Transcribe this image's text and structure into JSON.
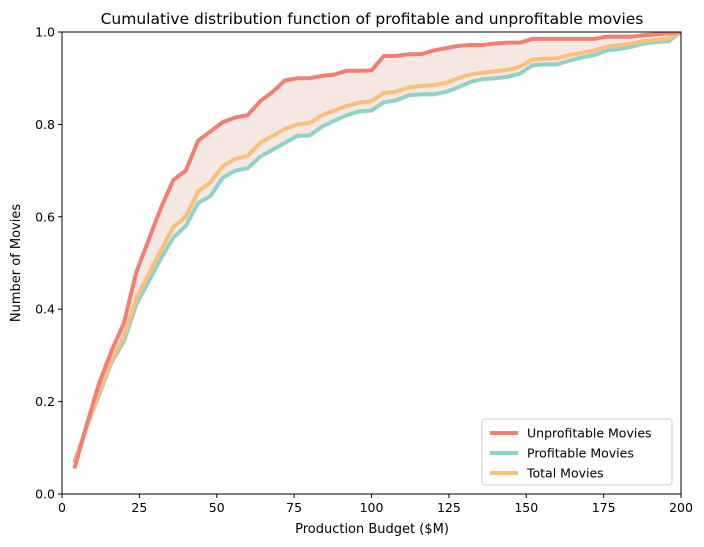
{
  "chart_data": {
    "type": "line",
    "title": "Cumulative distribution function of profitable and unprofitable movies",
    "xlabel": "Production Budget ($M)",
    "ylabel": "Number of Movies",
    "xlim": [
      0,
      200
    ],
    "ylim": [
      0,
      1
    ],
    "xticks": [
      0,
      25,
      50,
      75,
      100,
      125,
      150,
      175,
      200
    ],
    "yticks": [
      0.0,
      0.2,
      0.4,
      0.6,
      0.8,
      1.0
    ],
    "xtick_labels": [
      "0",
      "25",
      "50",
      "75",
      "100",
      "125",
      "150",
      "175",
      "200"
    ],
    "ytick_labels": [
      "0.0",
      "0.2",
      "0.4",
      "0.6",
      "0.8",
      "1.0"
    ],
    "grid": false,
    "legend_position": "lower-right",
    "fill_between": {
      "upper": "Unprofitable Movies",
      "lower": "Profitable Movies",
      "color": "#f4e4df"
    },
    "x": [
      4,
      8,
      12,
      16,
      20,
      24,
      28,
      32,
      36,
      40,
      44,
      48,
      52,
      56,
      60,
      64,
      68,
      72,
      76,
      80,
      84,
      88,
      92,
      96,
      100,
      104,
      108,
      112,
      116,
      120,
      124,
      128,
      132,
      136,
      140,
      144,
      148,
      152,
      156,
      160,
      164,
      168,
      172,
      176,
      180,
      184,
      188,
      192,
      196,
      200
    ],
    "series": [
      {
        "name": "Unprofitable Movies",
        "color": "#f28072",
        "values": [
          0.055,
          0.15,
          0.24,
          0.31,
          0.37,
          0.48,
          0.55,
          0.62,
          0.68,
          0.7,
          0.765,
          0.785,
          0.805,
          0.815,
          0.82,
          0.85,
          0.87,
          0.895,
          0.9,
          0.9,
          0.905,
          0.908,
          0.916,
          0.916,
          0.917,
          0.948,
          0.948,
          0.952,
          0.952,
          0.96,
          0.965,
          0.97,
          0.972,
          0.972,
          0.975,
          0.977,
          0.977,
          0.985,
          0.985,
          0.985,
          0.985,
          0.985,
          0.985,
          0.99,
          0.99,
          0.99,
          0.993,
          0.995,
          0.997,
          1.0
        ]
      },
      {
        "name": "Profitable Movies",
        "color": "#8ed3c8",
        "values": [
          0.07,
          0.145,
          0.215,
          0.285,
          0.33,
          0.41,
          0.46,
          0.51,
          0.555,
          0.58,
          0.63,
          0.645,
          0.685,
          0.7,
          0.705,
          0.73,
          0.745,
          0.76,
          0.775,
          0.776,
          0.795,
          0.808,
          0.82,
          0.828,
          0.83,
          0.848,
          0.852,
          0.863,
          0.865,
          0.865,
          0.87,
          0.88,
          0.892,
          0.898,
          0.9,
          0.903,
          0.91,
          0.928,
          0.93,
          0.93,
          0.938,
          0.945,
          0.95,
          0.96,
          0.963,
          0.968,
          0.975,
          0.978,
          0.98,
          1.0
        ]
      },
      {
        "name": "Total Movies",
        "color": "#f8c07a",
        "values": [
          0.068,
          0.146,
          0.22,
          0.29,
          0.34,
          0.425,
          0.475,
          0.528,
          0.578,
          0.6,
          0.655,
          0.675,
          0.71,
          0.725,
          0.732,
          0.76,
          0.775,
          0.79,
          0.8,
          0.803,
          0.82,
          0.83,
          0.84,
          0.847,
          0.85,
          0.868,
          0.871,
          0.88,
          0.883,
          0.885,
          0.89,
          0.9,
          0.908,
          0.912,
          0.915,
          0.918,
          0.925,
          0.94,
          0.942,
          0.943,
          0.95,
          0.955,
          0.96,
          0.968,
          0.971,
          0.975,
          0.98,
          0.983,
          0.986,
          1.0
        ]
      }
    ]
  }
}
